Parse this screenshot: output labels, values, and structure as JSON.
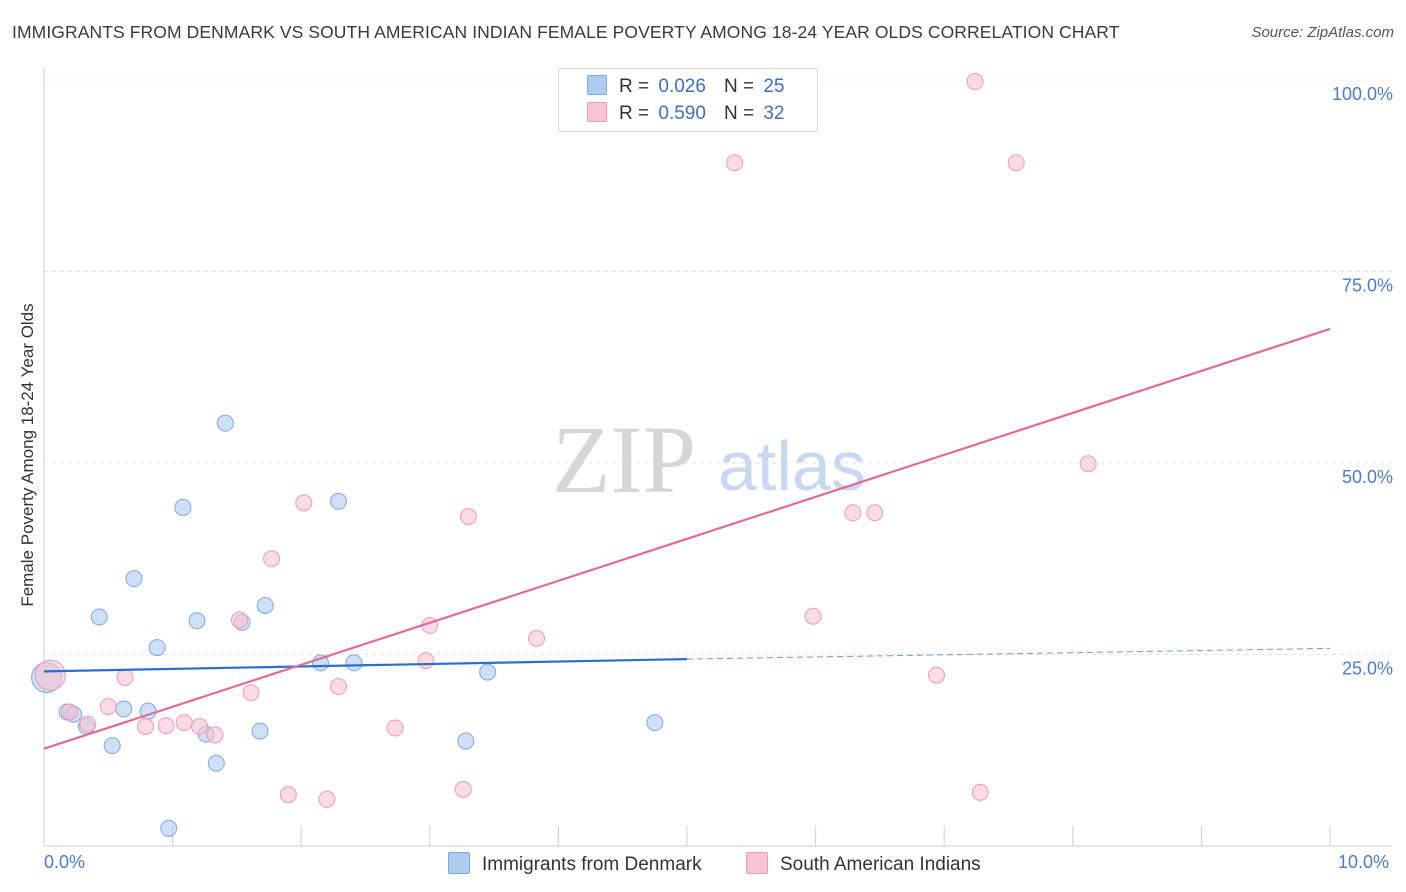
{
  "title": "IMMIGRANTS FROM DENMARK VS SOUTH AMERICAN INDIAN FEMALE POVERTY AMONG 18-24 YEAR OLDS CORRELATION CHART",
  "source": "Source: ZipAtlas.com",
  "watermark": {
    "zip": "ZIP",
    "atlas": "atlas"
  },
  "legend": {
    "rows": [
      {
        "r_label": "R =",
        "r_value": "0.026",
        "n_label": "N =",
        "n_value": "25",
        "color": "#aecbf0",
        "border": "#7fa8e0"
      },
      {
        "r_label": "R =",
        "r_value": "0.590",
        "n_label": "N =",
        "n_value": "32",
        "color": "#f8c3d3",
        "border": "#ee99b5"
      }
    ]
  },
  "bottom_legend": [
    {
      "label": "Immigrants from Denmark",
      "color": "#aecbf0",
      "border": "#7fa8e0"
    },
    {
      "label": "South American Indians",
      "color": "#f8c3d3",
      "border": "#ee99b5"
    }
  ],
  "chart_data": {
    "type": "scatter",
    "title": "IMMIGRANTS FROM DENMARK VS SOUTH AMERICAN INDIAN FEMALE POVERTY AMONG 18-24 YEAR OLDS CORRELATION CHART",
    "xlabel": "",
    "ylabel": "Female Poverty Among 18-24 Year Olds",
    "xlim": [
      0,
      10
    ],
    "ylim": [
      0,
      100
    ],
    "x_tick_labels": [
      "0.0%",
      "10.0%"
    ],
    "y_ticks": [
      25,
      50,
      75,
      100
    ],
    "y_tick_labels": [
      "25.0%",
      "50.0%",
      "75.0%",
      "100.0%"
    ],
    "grid": true,
    "series": [
      {
        "name": "Immigrants from Denmark",
        "color": "#aecbf0",
        "stroke": "#7fa8e0",
        "line_color": "#2a6fd0",
        "trend": {
          "x0": 0,
          "y0": 22.8,
          "x1": 5.0,
          "y1": 24.4,
          "dash_x1": 10,
          "dash_y1": 25.8
        },
        "points": [
          [
            0.02,
            22.0
          ],
          [
            0.18,
            17.5
          ],
          [
            0.23,
            17.2
          ],
          [
            0.33,
            15.6
          ],
          [
            0.43,
            29.9
          ],
          [
            0.53,
            13.1
          ],
          [
            0.62,
            17.9
          ],
          [
            0.7,
            34.9
          ],
          [
            0.81,
            17.6
          ],
          [
            0.88,
            25.9
          ],
          [
            0.97,
            2.3
          ],
          [
            1.08,
            44.2
          ],
          [
            1.19,
            29.4
          ],
          [
            1.26,
            14.6
          ],
          [
            1.34,
            10.8
          ],
          [
            1.41,
            55.2
          ],
          [
            1.54,
            29.2
          ],
          [
            1.68,
            15.0
          ],
          [
            1.72,
            31.4
          ],
          [
            2.15,
            23.9
          ],
          [
            2.29,
            45.0
          ],
          [
            2.41,
            23.9
          ],
          [
            3.28,
            13.7
          ],
          [
            3.45,
            22.7
          ],
          [
            4.75,
            16.1
          ]
        ]
      },
      {
        "name": "South American Indians",
        "color": "#f8c3d3",
        "stroke": "#ee99b5",
        "line_color": "#e06a98",
        "trend": {
          "x0": 0,
          "y0": 12.7,
          "x1": 10,
          "y1": 67.5
        },
        "points": [
          [
            0.05,
            22.3
          ],
          [
            0.2,
            17.5
          ],
          [
            0.34,
            15.9
          ],
          [
            0.5,
            18.2
          ],
          [
            0.63,
            22.0
          ],
          [
            0.79,
            15.6
          ],
          [
            0.95,
            15.7
          ],
          [
            1.09,
            16.1
          ],
          [
            1.21,
            15.6
          ],
          [
            1.33,
            14.5
          ],
          [
            1.52,
            29.5
          ],
          [
            1.61,
            20.0
          ],
          [
            1.77,
            37.5
          ],
          [
            1.9,
            6.7
          ],
          [
            2.02,
            44.8
          ],
          [
            2.2,
            6.1
          ],
          [
            2.29,
            20.8
          ],
          [
            2.73,
            15.4
          ],
          [
            2.97,
            24.2
          ],
          [
            3.0,
            28.8
          ],
          [
            3.26,
            7.4
          ],
          [
            3.3,
            43.0
          ],
          [
            3.83,
            27.1
          ],
          [
            5.37,
            89.2
          ],
          [
            5.98,
            30.0
          ],
          [
            6.29,
            43.5
          ],
          [
            6.46,
            43.5
          ],
          [
            6.94,
            22.3
          ],
          [
            7.24,
            99.8
          ],
          [
            7.28,
            7.0
          ],
          [
            7.56,
            89.2
          ],
          [
            8.12,
            49.9
          ]
        ]
      }
    ]
  }
}
